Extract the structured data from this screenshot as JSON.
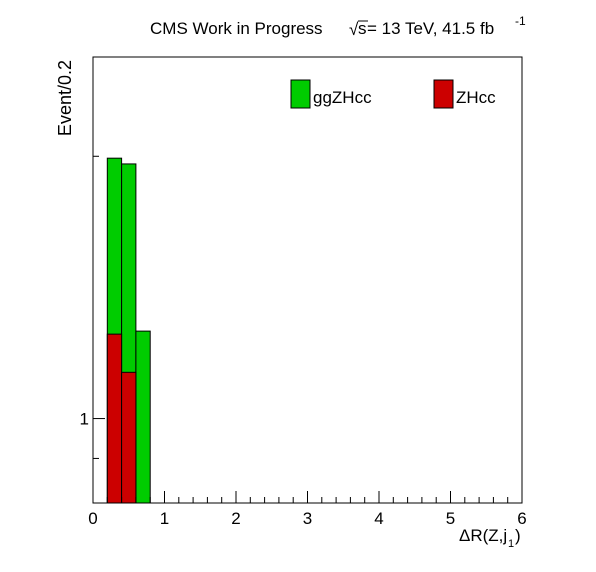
{
  "header": {
    "title_left": "CMS Work in Progress",
    "sqrt_symbol": "√",
    "s_symbol": "s",
    "title_rest": " = 13 TeV, 41.5 fb",
    "lumi_exponent": "-1"
  },
  "axes": {
    "ylabel": "Event/0.2",
    "xlabel_main": "ΔR(Z,j",
    "xlabel_sub": "1",
    "xlabel_close": ")"
  },
  "legend": [
    {
      "name": "ggZHcc",
      "color": "#00cc00"
    },
    {
      "name": "ZHcc",
      "color": "#cc0000"
    }
  ],
  "chart_data": {
    "type": "bar",
    "stacked": true,
    "y_scale": "log",
    "xlim": [
      0,
      6
    ],
    "ylim": [
      0.8,
      2.6
    ],
    "x_ticks": [
      0,
      1,
      2,
      3,
      4,
      5,
      6
    ],
    "y_ticks": [
      1
    ],
    "bin_width": 0.2,
    "bin_edges": [
      0.2,
      0.4,
      0.6,
      0.8
    ],
    "series": [
      {
        "name": "ZHcc",
        "color": "#cc0000",
        "values": [
          1.25,
          1.13,
          0
        ]
      },
      {
        "name": "ggZHcc",
        "color": "#00cc00",
        "values": [
          1.99,
          1.96,
          1.26
        ]
      }
    ],
    "legend_position": "top-right",
    "grid": false
  }
}
